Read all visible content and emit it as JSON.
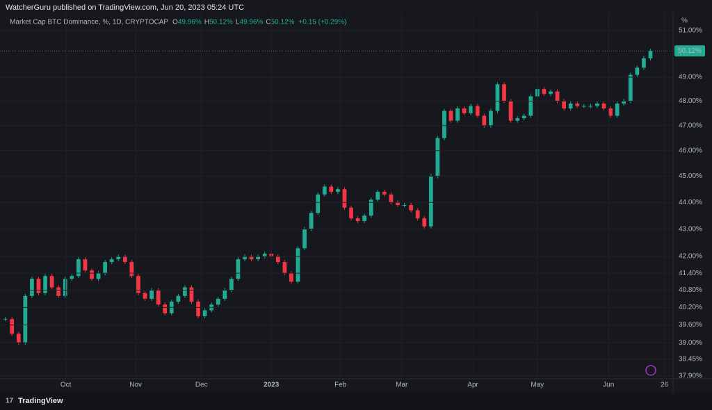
{
  "chart_data": {
    "type": "candlestick",
    "published": "WatcherGuru published on TradingView.com, Jun 20, 2023 05:24 UTC",
    "title": "Market Cap BTC Dominance, %, 1D, CRYPTOCAP",
    "ohlc_legend": [
      {
        "key": "O",
        "label": "49.96%"
      },
      {
        "key": "H",
        "label": "50.12%"
      },
      {
        "key": "L",
        "label": "49.96%"
      },
      {
        "key": "C",
        "label": "50.12%"
      }
    ],
    "change": "+0.15 (+0.29%)",
    "y_unit": "%",
    "last_price": 50.12,
    "last_price_label": "50.12%",
    "footer": "TradingView",
    "up_color": "#22ab94",
    "down_color": "#f23645",
    "values": [
      39.8,
      39.3,
      39.0,
      40.6,
      41.2,
      40.7,
      41.3,
      40.9,
      40.6,
      41.2,
      41.3,
      41.9,
      41.5,
      41.2,
      41.4,
      41.8,
      41.9,
      42.0,
      41.8,
      41.3,
      40.7,
      40.5,
      40.8,
      40.3,
      40.0,
      40.4,
      40.6,
      40.9,
      40.4,
      39.9,
      40.1,
      40.3,
      40.5,
      40.8,
      41.2,
      41.9,
      42.0,
      41.9,
      42.0,
      42.1,
      42.0,
      41.8,
      41.4,
      41.1,
      42.3,
      43.0,
      43.6,
      44.3,
      44.6,
      44.4,
      44.5,
      43.8,
      43.4,
      43.3,
      43.5,
      44.1,
      44.4,
      44.3,
      44.0,
      43.9,
      43.9,
      43.7,
      43.4,
      43.1,
      45.0,
      46.5,
      47.6,
      47.2,
      47.7,
      47.5,
      47.8,
      47.4,
      47.0,
      47.6,
      48.7,
      48.0,
      47.2,
      47.3,
      47.4,
      48.2,
      48.5,
      48.3,
      48.4,
      48.0,
      47.7,
      47.9,
      47.8,
      47.8,
      47.8,
      47.9,
      47.7,
      47.4,
      47.9,
      48.0,
      49.1,
      49.4,
      49.8,
      50.12
    ],
    "xlim": [
      -0.8,
      100.4
    ],
    "xticks": [
      {
        "value": 9.1,
        "label": "Oct"
      },
      {
        "value": 19.6,
        "label": "Nov"
      },
      {
        "value": 29.5,
        "label": "Dec"
      },
      {
        "value": 40,
        "label": "2023"
      },
      {
        "value": 50.4,
        "label": "Feb"
      },
      {
        "value": 59.6,
        "label": "Mar"
      },
      {
        "value": 70.3,
        "label": "Apr"
      },
      {
        "value": 80,
        "label": "May"
      },
      {
        "value": 90.7,
        "label": "Jun"
      },
      {
        "value": 99.1,
        "label": "26"
      }
    ],
    "log_scale": true,
    "ylim": [
      37.81,
      51.8
    ],
    "yticks": [
      {
        "value": 37.9,
        "label": "37.90%"
      },
      {
        "value": 38.45,
        "label": "38.45%"
      },
      {
        "value": 39.0,
        "label": "39.00%"
      },
      {
        "value": 39.6,
        "label": "39.60%"
      },
      {
        "value": 40.2,
        "label": "40.20%"
      },
      {
        "value": 40.8,
        "label": "40.80%"
      },
      {
        "value": 41.4,
        "label": "41.40%"
      },
      {
        "value": 42.0,
        "label": "42.00%"
      },
      {
        "value": 43.0,
        "label": "43.00%"
      },
      {
        "value": 44.0,
        "label": "44.00%"
      },
      {
        "value": 45.0,
        "label": "45.00%"
      },
      {
        "value": 46.0,
        "label": "46.00%"
      },
      {
        "value": 47.0,
        "label": "47.00%"
      },
      {
        "value": 48.0,
        "label": "48.00%"
      },
      {
        "value": 49.0,
        "label": "49.00%"
      },
      {
        "value": 51.0,
        "label": "51.00%"
      }
    ],
    "grid": true
  }
}
